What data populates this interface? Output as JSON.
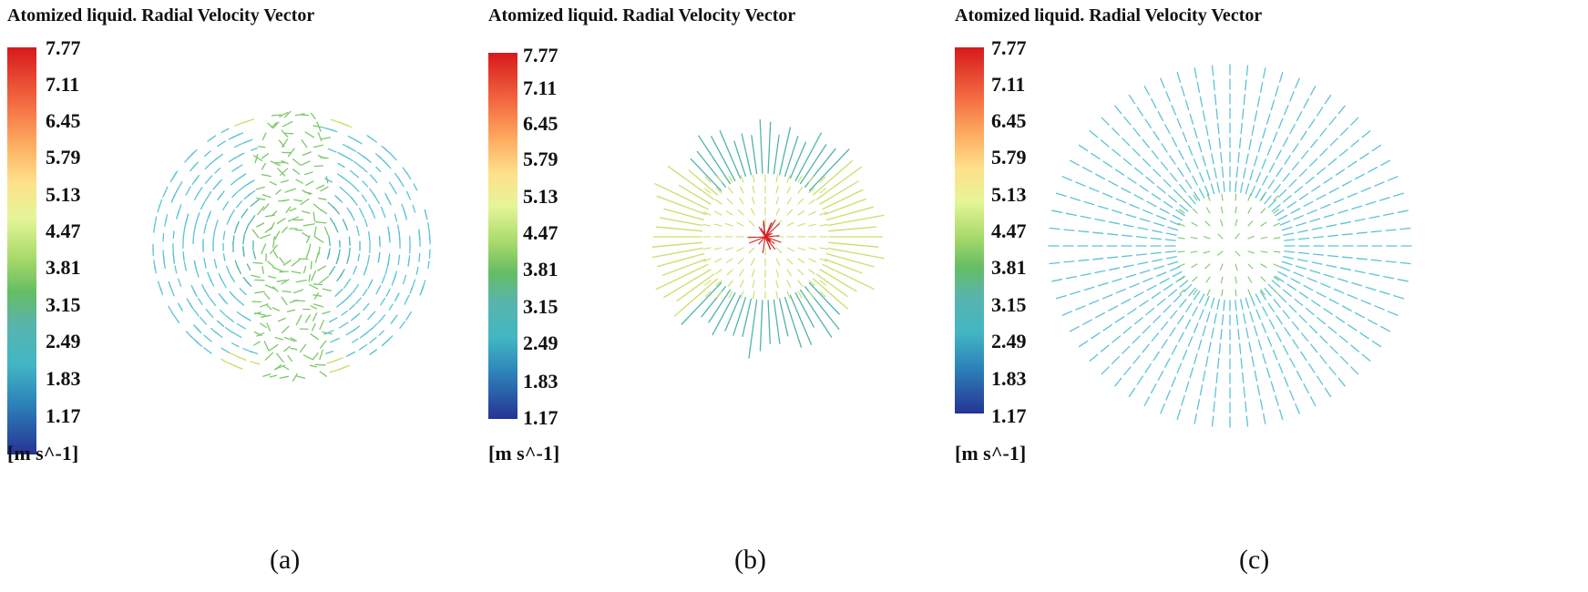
{
  "panels": [
    {
      "id": "a",
      "title": "Atomized liquid. Radial Velocity Vector",
      "caption": "(a)",
      "pattern": "swirl",
      "colorbar": {
        "ticks": [
          "7.77",
          "7.11",
          "6.45",
          "5.79",
          "5.13",
          "4.47",
          "3.81",
          "3.15",
          "2.49",
          "1.83",
          "1.17"
        ],
        "unit": "[m s^-1]"
      }
    },
    {
      "id": "b",
      "title": "Atomized liquid. Radial Velocity Vector",
      "caption": "(b)",
      "pattern": "compact-radial",
      "colorbar": {
        "ticks": [
          "7.77",
          "7.11",
          "6.45",
          "5.79",
          "5.13",
          "4.47",
          "3.81",
          "3.15",
          "2.49",
          "1.83",
          "1.17"
        ],
        "unit": "[m s^-1]"
      }
    },
    {
      "id": "c",
      "title": "Atomized liquid. Radial Velocity Vector",
      "caption": "(c)",
      "pattern": "wide-radial",
      "colorbar": {
        "ticks": [
          "7.77",
          "7.11",
          "6.45",
          "5.79",
          "5.13",
          "4.47",
          "3.81",
          "3.15",
          "2.49",
          "1.83",
          "1.17"
        ],
        "unit": "[m s^-1]"
      }
    }
  ],
  "colors": {
    "cyan": "#5cc3d6",
    "teal": "#4fb5a8",
    "green": "#7cc86a",
    "yellowgreen": "#c9df6a",
    "red": "#d62020"
  }
}
